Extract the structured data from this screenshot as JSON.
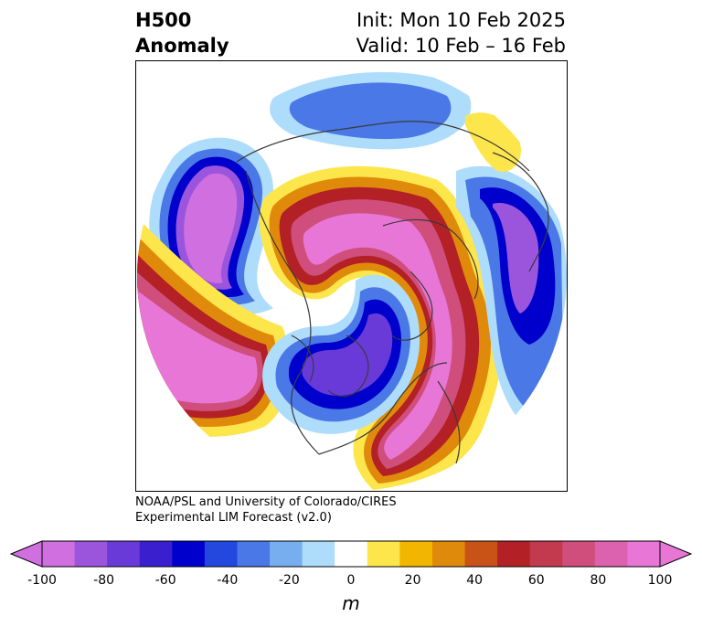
{
  "header": {
    "left_line1": "H500",
    "left_line2": "Anomaly",
    "right_line1": "Init: Mon 10 Feb 2025",
    "right_line2": "Valid: 10 Feb – 16 Feb"
  },
  "credit": {
    "line1": "NOAA/PSL and University of Colorado/CIRES",
    "line2": "Experimental LIM Forecast (v2.0)"
  },
  "colorbar": {
    "unit": "m",
    "tick_labels": [
      "-100",
      "-80",
      "-60",
      "-40",
      "-20",
      "0",
      "20",
      "40",
      "60",
      "80",
      "100"
    ],
    "levels": [
      -100,
      -90,
      -80,
      -70,
      -60,
      -50,
      -40,
      -30,
      -20,
      -10,
      10,
      20,
      30,
      40,
      50,
      60,
      70,
      80,
      90,
      100
    ],
    "colors": [
      "#d070e0",
      "#9b55dd",
      "#6a3ad8",
      "#3a1fcf",
      "#0000cc",
      "#2447dd",
      "#4a78e6",
      "#77aef0",
      "#aedcfb",
      "#ffffff",
      "#fde64c",
      "#f2b600",
      "#e08a0b",
      "#c95317",
      "#b32025",
      "#c33a4e",
      "#cf4e7b",
      "#dc62b0",
      "#e876d6"
    ],
    "extend": "both"
  },
  "colors": {
    "coastline": "#3a3a3a",
    "frame": "#000000"
  }
}
